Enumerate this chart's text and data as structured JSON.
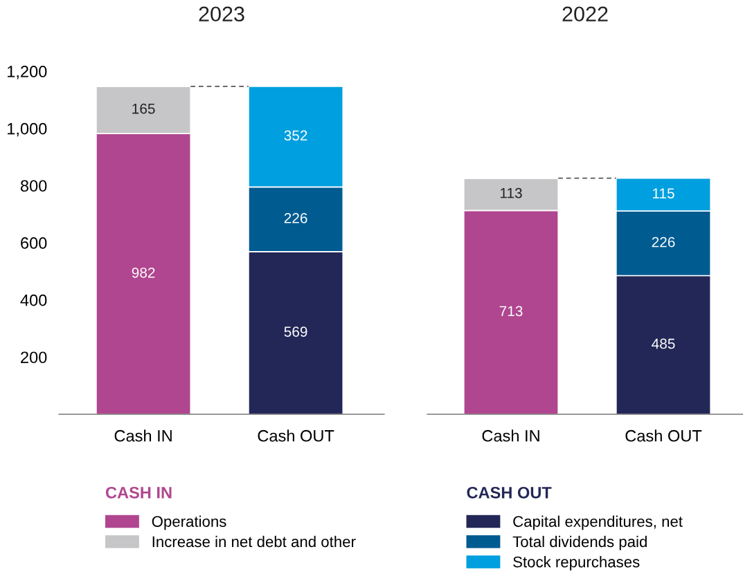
{
  "chart_data": [
    {
      "type": "bar",
      "title": "2023",
      "stacked": true,
      "categories": [
        "Cash IN",
        "Cash OUT"
      ],
      "ylim": [
        0,
        1200
      ],
      "yticks": [
        {
          "value": 0,
          "label": null
        },
        200,
        400,
        600,
        800,
        {
          "value": 1000,
          "label": "1,000"
        },
        {
          "value": 1200,
          "label": "1,200"
        }
      ],
      "data_labels": true,
      "legend": "bottom",
      "legend_title": "CASH IN",
      "grid": false,
      "ref_lines": [
        {
          "axis": "y",
          "value": 1147,
          "line_style": "dashed",
          "color": "#555555"
        }
      ],
      "series": [
        {
          "name": "Operations",
          "color": "#b0468f",
          "values": [
            982,
            null
          ]
        },
        {
          "name": "Increase in net debt and other",
          "color": "#c6c6c8",
          "values": [
            165,
            null
          ]
        },
        {
          "color": "#232757",
          "values": [
            null,
            569
          ]
        },
        {
          "color": "#005b91",
          "values": [
            null,
            226
          ]
        },
        {
          "color": "#009fdf",
          "values": [
            null,
            352
          ]
        }
      ]
    },
    {
      "type": "bar",
      "title": "2022",
      "stacked": true,
      "categories": [
        "Cash IN",
        "Cash OUT"
      ],
      "ylim": [
        0,
        1200
      ],
      "tick_labels": "x",
      "data_labels": true,
      "legend": "bottom",
      "legend_title": "CASH OUT",
      "grid": false,
      "ref_lines": [
        {
          "axis": "y",
          "value": 826,
          "line_style": "dashed",
          "color": "#555555"
        }
      ],
      "series": [
        {
          "color": "#b0468f",
          "values": [
            713,
            null
          ]
        },
        {
          "color": "#c6c6c8",
          "values": [
            113,
            null
          ]
        },
        {
          "name": "Capital expenditures, net",
          "color": "#232757",
          "values": [
            null,
            485
          ]
        },
        {
          "name": "Total dividends paid",
          "color": "#005b91",
          "values": [
            null,
            226
          ]
        },
        {
          "name": "Stock repurchases",
          "color": "#009fdf",
          "values": [
            null,
            115
          ]
        }
      ]
    }
  ]
}
